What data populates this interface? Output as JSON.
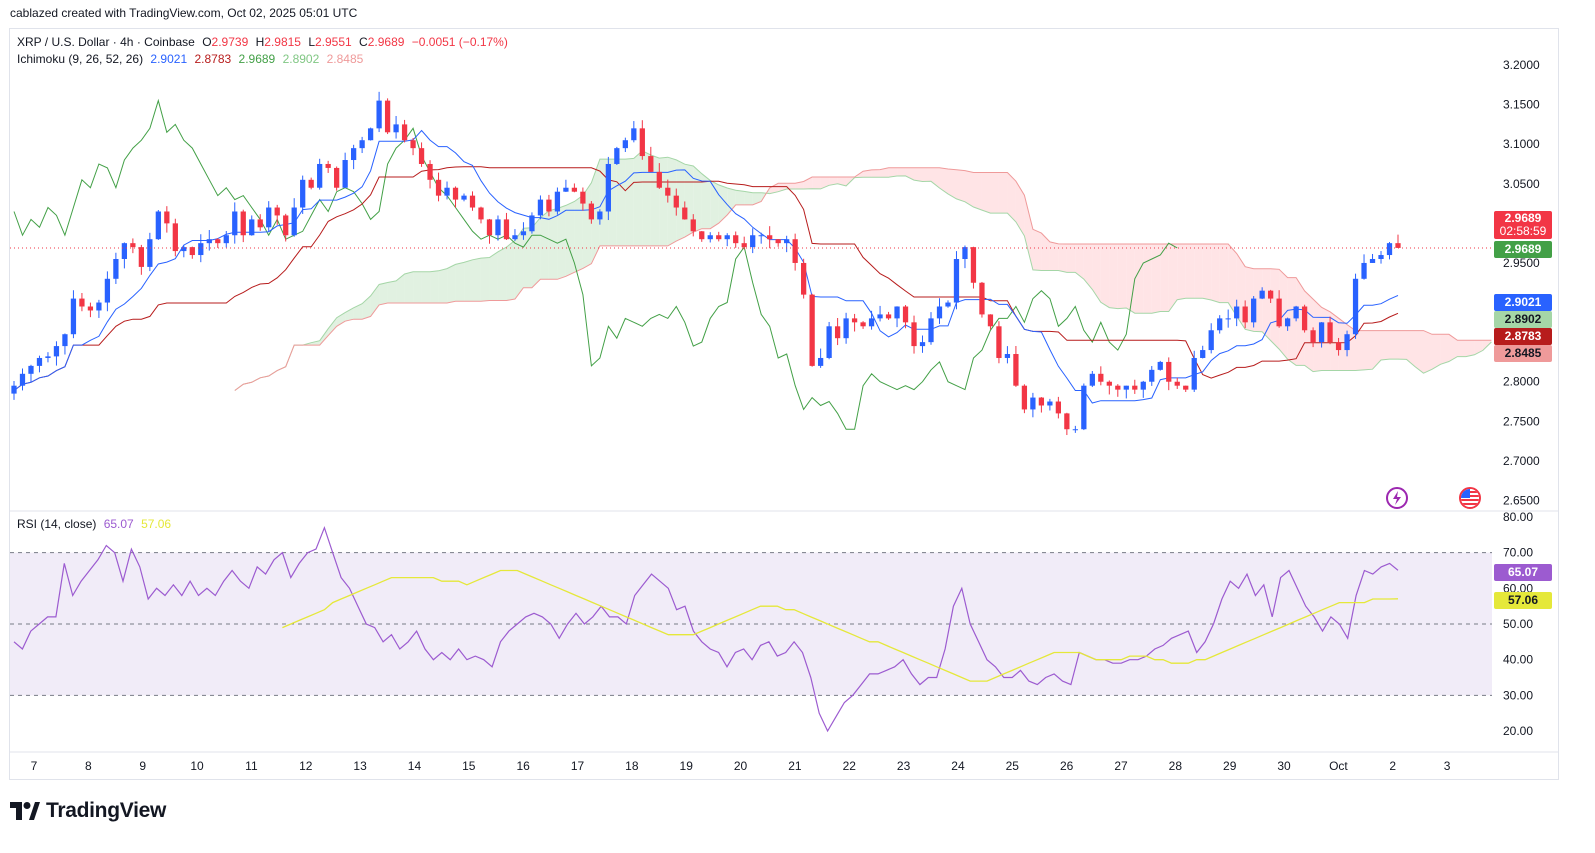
{
  "credit": "cablazed created with TradingView.com, Oct 02, 2025 05:01 UTC",
  "legend": {
    "symbol": "XRP / U.S. Dollar · 4h · Coinbase",
    "o_label": "O",
    "o": "2.9739",
    "h_label": "H",
    "h": "2.9815",
    "l_label": "L",
    "l": "2.9551",
    "c_label": "C",
    "c": "2.9689",
    "change": "−0.0051 (−0.17%)",
    "ichimoku_name": "Ichimoku (9, 26, 52, 26)",
    "ichimoku_values": [
      "2.9021",
      "2.8783",
      "2.9689",
      "2.8902",
      "2.8485"
    ],
    "rsi_name": "RSI (14, close)",
    "rsi_value": "65.07",
    "rsi_ma": "57.06"
  },
  "price_tags": {
    "last_price": "2.9689",
    "countdown": "02:58:59",
    "lagging": "2.9689",
    "conversion": "2.9021",
    "span_a": "2.8902",
    "base": "2.8783",
    "span_b": "2.8485",
    "rsi": "65.07",
    "rsi_ma": "57.06"
  },
  "colors": {
    "up": "#2962ff",
    "down": "#f23645",
    "conversion": "#2962ff",
    "base": "#b71c1c",
    "lagging": "#43a047",
    "span_a": "#a5d6a7",
    "span_b": "#ef9a9a",
    "rsi": "#9c5bd0",
    "rsi_ma": "#e5e83a",
    "last_price_tag": "#f23645",
    "lagging_tag": "#43a047",
    "conversion_tag": "#2962ff",
    "span_a_tag": "#a5d6a7",
    "base_tag": "#b71c1c",
    "span_b_tag": "#ef9a9a",
    "rsi_tag": "#9c5bd0",
    "rsi_ma_tag": "#e5e83a"
  },
  "brand": {
    "logo_text": "TradingView"
  },
  "chart_data": [
    {
      "type": "candlestick",
      "title": "XRP / U.S. Dollar · 4h · Coinbase",
      "y_ticks": [
        "3.2000",
        "3.1500",
        "3.1000",
        "3.0500",
        "3.0000",
        "2.9500",
        "2.9000",
        "2.8500",
        "2.8000",
        "2.7500",
        "2.7000",
        "2.6500"
      ],
      "ylim": [
        2.65,
        3.2
      ],
      "x_ticks": [
        "7",
        "8",
        "9",
        "10",
        "11",
        "12",
        "13",
        "14",
        "15",
        "16",
        "17",
        "18",
        "19",
        "20",
        "21",
        "22",
        "23",
        "24",
        "25",
        "26",
        "27",
        "28",
        "29",
        "30",
        "Oct",
        "2",
        "3"
      ],
      "last_price": 2.9689,
      "candles_close": [
        2.795,
        2.81,
        2.82,
        2.83,
        2.832,
        2.845,
        2.86,
        2.905,
        2.895,
        2.89,
        2.9,
        2.93,
        2.955,
        2.975,
        2.97,
        2.945,
        2.98,
        3.015,
        3.0,
        2.965,
        2.97,
        2.96,
        2.975,
        2.98,
        2.975,
        2.985,
        3.015,
        2.985,
        3.005,
        2.995,
        3.02,
        3.01,
        2.985,
        3.02,
        3.055,
        3.045,
        3.075,
        3.07,
        3.045,
        3.08,
        3.095,
        3.105,
        3.12,
        3.155,
        3.115,
        3.125,
        3.105,
        3.095,
        3.075,
        3.055,
        3.035,
        3.045,
        3.03,
        3.035,
        3.02,
        3.005,
        2.985,
        3.005,
        2.98,
        2.985,
        2.99,
        3.01,
        3.03,
        3.015,
        3.04,
        3.045,
        3.04,
        3.025,
        3.005,
        3.015,
        3.075,
        3.095,
        3.105,
        3.12,
        3.085,
        3.065,
        3.045,
        3.035,
        3.02,
        3.005,
        2.99,
        2.98,
        2.985,
        2.98,
        2.985,
        2.975,
        2.97,
        2.985,
        2.985,
        2.98,
        2.975,
        2.98,
        2.95,
        2.91,
        2.82,
        2.83,
        2.87,
        2.855,
        2.88,
        2.875,
        2.87,
        2.88,
        2.885,
        2.88,
        2.895,
        2.875,
        2.845,
        2.85,
        2.88,
        2.895,
        2.9,
        2.955,
        2.97,
        2.925,
        2.885,
        2.87,
        2.83,
        2.835,
        2.795,
        2.765,
        2.78,
        2.77,
        2.775,
        2.76,
        2.74,
        2.74,
        2.795,
        2.81,
        2.8,
        2.795,
        2.79,
        2.795,
        2.79,
        2.8,
        2.815,
        2.825,
        2.8,
        2.795,
        2.79,
        2.83,
        2.84,
        2.865,
        2.88,
        2.88,
        2.895,
        2.875,
        2.905,
        2.915,
        2.905,
        2.87,
        2.88,
        2.895,
        2.865,
        2.85,
        2.875,
        2.85,
        2.84,
        2.86,
        2.93,
        2.95,
        2.955,
        2.96,
        2.975,
        2.969
      ],
      "x_range_days": [
        6.6,
        3.6
      ]
    },
    {
      "type": "line",
      "title": "RSI (14, close)",
      "y_ticks": [
        "80.00",
        "70.00",
        "60.00",
        "50.00",
        "40.00",
        "30.00",
        "20.00"
      ],
      "ylim": [
        18,
        82
      ],
      "bands": [
        30,
        50,
        70
      ],
      "series": [
        {
          "name": "RSI",
          "values": [
            45,
            43,
            48,
            50,
            52,
            52,
            67,
            58,
            62,
            65,
            68,
            72,
            70,
            62,
            71,
            66,
            57,
            60,
            58,
            61,
            58,
            62,
            58,
            60,
            58,
            62,
            65,
            62,
            60,
            66,
            64,
            68,
            70,
            63,
            67,
            70,
            71,
            77,
            70,
            63,
            60,
            55,
            50,
            49,
            45,
            47,
            43,
            45,
            48,
            43,
            40,
            42,
            40,
            43,
            40,
            41,
            40,
            38,
            45,
            48,
            50,
            52,
            53,
            52,
            50,
            46,
            50,
            53,
            50,
            52,
            55,
            52,
            52,
            50,
            58,
            61,
            64,
            62,
            60,
            54,
            55,
            48,
            45,
            43,
            42,
            38,
            42,
            43,
            40,
            44,
            45,
            41,
            42,
            45,
            42,
            35,
            25,
            20,
            24,
            28,
            30,
            33,
            36,
            36,
            37,
            38,
            40,
            36,
            33,
            35,
            35,
            43,
            55,
            60,
            50,
            45,
            40,
            38,
            35,
            35,
            37,
            34,
            33,
            35,
            36,
            34,
            33,
            42,
            41,
            40,
            40,
            39,
            39,
            40,
            40,
            41,
            43,
            44,
            46,
            47,
            48,
            42,
            45,
            50,
            57,
            62,
            60,
            64,
            58,
            61,
            52,
            63,
            65,
            60,
            55,
            52,
            48,
            52,
            50,
            46,
            58,
            65,
            64,
            66,
            67,
            65.07
          ]
        },
        {
          "name": "RSI-based MA",
          "values": [
            49,
            50,
            51,
            52,
            53,
            54,
            56,
            57,
            58,
            59,
            60,
            61,
            62,
            63,
            63,
            63,
            63,
            63,
            63,
            62,
            62,
            62,
            61,
            62,
            63,
            64,
            65,
            65,
            65,
            64,
            63,
            62,
            61,
            60,
            59,
            58,
            57,
            56,
            55,
            54,
            53,
            52,
            51,
            50,
            49,
            48,
            47,
            47,
            47,
            47,
            48,
            49,
            50,
            51,
            52,
            53,
            54,
            55,
            55,
            55,
            54,
            54,
            53,
            52,
            51,
            50,
            49,
            48,
            47,
            46,
            45,
            45,
            44,
            43,
            42,
            41,
            40,
            39,
            38,
            37,
            36,
            35,
            34,
            34,
            34,
            35,
            36,
            37,
            38,
            39,
            40,
            41,
            42,
            42,
            42,
            42,
            41,
            40,
            40,
            40,
            40,
            41,
            41,
            41,
            40,
            40,
            39,
            39,
            39,
            40,
            40,
            41,
            42,
            43,
            44,
            45,
            46,
            47,
            48,
            49,
            50,
            51,
            52,
            53,
            54,
            55,
            56,
            56,
            56,
            56,
            57,
            57,
            57,
            57.06
          ]
        }
      ]
    }
  ]
}
